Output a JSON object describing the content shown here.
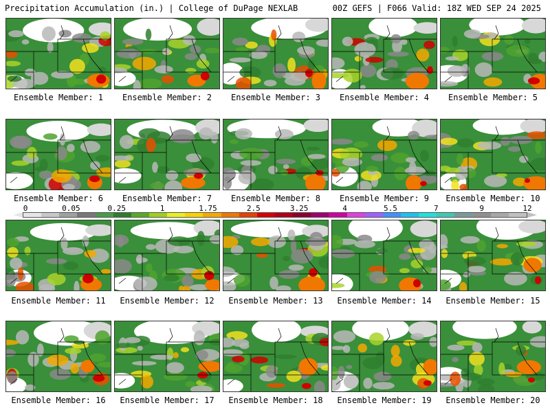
{
  "header": {
    "title_left": "Precipitation Accumulation (in.) | College of DuPage NEXLAB",
    "title_right": "00Z GEFS | F066 Valid: 18Z WED SEP 24 2025"
  },
  "members": [
    "Ensemble Member: 1",
    "Ensemble Member: 2",
    "Ensemble Member: 3",
    "Ensemble Member: 4",
    "Ensemble Member: 5",
    "Ensemble Member: 6",
    "Ensemble Member: 7",
    "Ensemble Member: 8",
    "Ensemble Member: 9",
    "Ensemble Member: 10",
    "Ensemble Member: 11",
    "Ensemble Member: 12",
    "Ensemble Member: 13",
    "Ensemble Member: 14",
    "Ensemble Member: 15",
    "Ensemble Member: 16",
    "Ensemble Member: 17",
    "Ensemble Member: 18",
    "Ensemble Member: 19",
    "Ensemble Member: 20"
  ],
  "colorbar": {
    "tick_labels": [
      "0",
      "0.05",
      "0.25",
      "1",
      "1.75",
      "2.5",
      "3.25",
      "4",
      "5.5",
      "7",
      "9",
      "12"
    ],
    "colors": [
      "#e6e6e6",
      "#c8c8c8",
      "#a0a0a0",
      "#787878",
      "#4a9a4a",
      "#2e7d2e",
      "#5aa82a",
      "#9ecf1e",
      "#e8f020",
      "#f7d200",
      "#f5a800",
      "#f07800",
      "#e84000",
      "#d80000",
      "#b00018",
      "#8c0030",
      "#a00070",
      "#d000a0",
      "#e040e0",
      "#a060ff",
      "#4090ff",
      "#20c0f0",
      "#20e0e0",
      "#40c8b0",
      "#7a9a9a",
      "#909090",
      "#a8a8a8",
      "#c0c0c0"
    ]
  }
}
